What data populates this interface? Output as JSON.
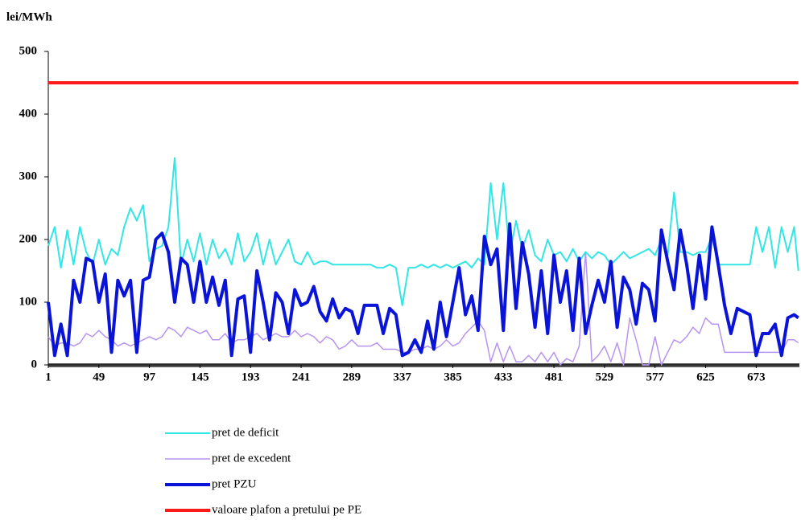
{
  "chart_data": {
    "type": "line",
    "y_label": "lei/MWh",
    "xlim": [
      1,
      714
    ],
    "xticks": [
      1,
      49,
      97,
      145,
      193,
      241,
      289,
      337,
      385,
      433,
      481,
      529,
      577,
      625,
      673
    ],
    "ylim": [
      0,
      500
    ],
    "yticks": [
      0,
      100,
      200,
      300,
      400,
      500
    ],
    "x": [
      1,
      7,
      13,
      19,
      25,
      31,
      37,
      43,
      49,
      55,
      61,
      67,
      73,
      79,
      85,
      91,
      97,
      103,
      109,
      115,
      121,
      127,
      133,
      139,
      145,
      151,
      157,
      163,
      169,
      175,
      181,
      187,
      193,
      199,
      205,
      211,
      217,
      223,
      229,
      235,
      241,
      247,
      253,
      259,
      265,
      271,
      277,
      283,
      289,
      295,
      301,
      307,
      313,
      319,
      325,
      331,
      337,
      343,
      349,
      355,
      361,
      367,
      373,
      379,
      385,
      391,
      397,
      403,
      409,
      415,
      421,
      427,
      433,
      439,
      445,
      451,
      457,
      463,
      469,
      475,
      481,
      487,
      493,
      499,
      505,
      511,
      517,
      523,
      529,
      535,
      541,
      547,
      553,
      559,
      565,
      571,
      577,
      583,
      589,
      595,
      601,
      607,
      613,
      619,
      625,
      631,
      637,
      643,
      649,
      655,
      661,
      667,
      673,
      679,
      685,
      691,
      697,
      703,
      709,
      713
    ],
    "series": [
      {
        "name": "pret de deficit",
        "color": "#33e6e6",
        "width": 2,
        "values": [
          190,
          220,
          155,
          215,
          160,
          220,
          180,
          160,
          200,
          160,
          185,
          175,
          220,
          250,
          230,
          255,
          165,
          185,
          190,
          220,
          330,
          160,
          200,
          165,
          210,
          160,
          200,
          170,
          185,
          160,
          210,
          165,
          180,
          210,
          160,
          200,
          160,
          180,
          200,
          165,
          160,
          180,
          160,
          165,
          165,
          160,
          160,
          160,
          160,
          160,
          160,
          160,
          155,
          155,
          160,
          155,
          95,
          155,
          155,
          160,
          155,
          160,
          155,
          160,
          155,
          160,
          165,
          155,
          170,
          160,
          290,
          200,
          290,
          175,
          230,
          185,
          215,
          175,
          165,
          200,
          175,
          180,
          165,
          185,
          165,
          180,
          170,
          180,
          175,
          160,
          170,
          180,
          170,
          175,
          180,
          185,
          175,
          200,
          175,
          275,
          180,
          180,
          175,
          180,
          180,
          205,
          160,
          160,
          160,
          160,
          160,
          160,
          220,
          180,
          220,
          155,
          220,
          180,
          220,
          150
        ]
      },
      {
        "name": "pret de excedent",
        "color": "#b794f0",
        "width": 1.5,
        "values": [
          45,
          30,
          35,
          35,
          30,
          35,
          50,
          45,
          55,
          45,
          40,
          30,
          35,
          30,
          35,
          40,
          45,
          40,
          45,
          60,
          55,
          45,
          60,
          55,
          50,
          55,
          40,
          40,
          50,
          35,
          40,
          40,
          45,
          50,
          40,
          45,
          50,
          45,
          45,
          55,
          45,
          50,
          45,
          35,
          45,
          40,
          25,
          30,
          40,
          30,
          30,
          30,
          35,
          25,
          25,
          25,
          20,
          20,
          25,
          25,
          30,
          25,
          30,
          40,
          30,
          35,
          50,
          60,
          70,
          55,
          5,
          35,
          5,
          30,
          5,
          5,
          15,
          5,
          20,
          5,
          20,
          0,
          10,
          5,
          30,
          180,
          5,
          15,
          30,
          5,
          35,
          0,
          75,
          40,
          0,
          0,
          45,
          0,
          20,
          40,
          35,
          45,
          60,
          50,
          75,
          65,
          65,
          20,
          20,
          20,
          20,
          20,
          20,
          20,
          20,
          20,
          20,
          40,
          40,
          35
        ]
      },
      {
        "name": "pret PZU",
        "color": "#0a14d8",
        "width": 4,
        "values": [
          100,
          15,
          65,
          15,
          135,
          100,
          170,
          165,
          100,
          145,
          20,
          135,
          110,
          135,
          20,
          135,
          140,
          200,
          210,
          180,
          100,
          170,
          160,
          100,
          165,
          100,
          140,
          95,
          135,
          15,
          105,
          110,
          20,
          150,
          100,
          40,
          115,
          100,
          50,
          120,
          95,
          100,
          125,
          85,
          70,
          105,
          75,
          90,
          85,
          50,
          95,
          95,
          95,
          50,
          90,
          80,
          15,
          20,
          40,
          20,
          70,
          25,
          100,
          45,
          100,
          155,
          80,
          110,
          55,
          205,
          160,
          185,
          55,
          225,
          90,
          195,
          145,
          60,
          150,
          50,
          175,
          100,
          150,
          55,
          170,
          50,
          95,
          135,
          100,
          165,
          60,
          140,
          120,
          65,
          130,
          120,
          70,
          215,
          165,
          120,
          215,
          160,
          90,
          175,
          105,
          220,
          160,
          95,
          50,
          90,
          85,
          80,
          15,
          50,
          50,
          65,
          15,
          75,
          80,
          75
        ]
      },
      {
        "name": "valoare plafon a pretului pe PE",
        "color": "#ff1a1a",
        "width": 4,
        "values": [
          450,
          450,
          450,
          450,
          450,
          450,
          450,
          450,
          450,
          450,
          450,
          450,
          450,
          450,
          450,
          450,
          450,
          450,
          450,
          450,
          450,
          450,
          450,
          450,
          450,
          450,
          450,
          450,
          450,
          450,
          450,
          450,
          450,
          450,
          450,
          450,
          450,
          450,
          450,
          450,
          450,
          450,
          450,
          450,
          450,
          450,
          450,
          450,
          450,
          450,
          450,
          450,
          450,
          450,
          450,
          450,
          450,
          450,
          450,
          450,
          450,
          450,
          450,
          450,
          450,
          450,
          450,
          450,
          450,
          450,
          450,
          450,
          450,
          450,
          450,
          450,
          450,
          450,
          450,
          450,
          450,
          450,
          450,
          450,
          450,
          450,
          450,
          450,
          450,
          450,
          450,
          450,
          450,
          450,
          450,
          450,
          450,
          450,
          450,
          450,
          450,
          450,
          450,
          450,
          450,
          450,
          450,
          450,
          450,
          450,
          450,
          450,
          450,
          450,
          450,
          450,
          450,
          450,
          450,
          450
        ]
      }
    ]
  }
}
